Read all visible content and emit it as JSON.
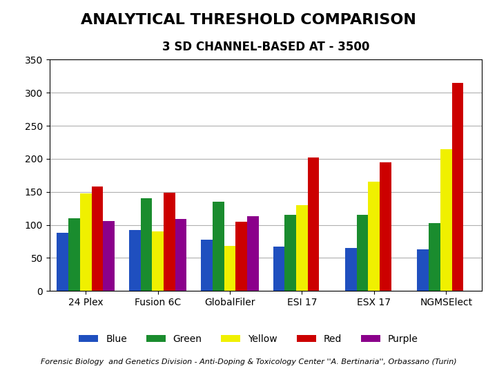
{
  "chart_data": {
    "type": "bar",
    "title": "ANALYTICAL THRESHOLD COMPARISON",
    "subtitle": "3 SD CHANNEL-BASED AT - 3500",
    "annotations": [
      "Forensic Biology  and Genetics Division - Anti-Doping & Toxicology Center ''A. Bertinaria'', Orbassano (Turin)"
    ],
    "categories": [
      "24 Plex",
      "Fusion 6C",
      "GlobalFiler",
      "ESI 17",
      "ESX 17",
      "NGMSElect"
    ],
    "series": [
      {
        "name": "Blue",
        "color": "#1F4FBF",
        "values": [
          88,
          92,
          78,
          67,
          65,
          63
        ]
      },
      {
        "name": "Green",
        "color": "#1A8C2E",
        "values": [
          110,
          140,
          135,
          115,
          115,
          103
        ]
      },
      {
        "name": "Yellow",
        "color": "#F0F000",
        "values": [
          148,
          90,
          68,
          130,
          165,
          215
        ]
      },
      {
        "name": "Red",
        "color": "#CC0000",
        "values": [
          158,
          149,
          105,
          202,
          195,
          315
        ]
      },
      {
        "name": "Purple",
        "color": "#8B008B",
        "values": [
          106,
          109,
          113,
          0,
          0,
          0
        ]
      }
    ],
    "ylim": [
      0,
      350
    ],
    "yticks": [
      0,
      50,
      100,
      150,
      200,
      250,
      300,
      350
    ],
    "grid": true,
    "legend": "lower center"
  }
}
